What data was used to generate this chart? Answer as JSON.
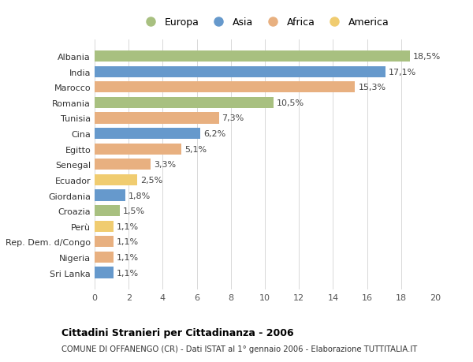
{
  "countries": [
    "Albania",
    "India",
    "Marocco",
    "Romania",
    "Tunisia",
    "Cina",
    "Egitto",
    "Senegal",
    "Ecuador",
    "Giordania",
    "Croazia",
    "Perù",
    "Rep. Dem. d/Congo",
    "Nigeria",
    "Sri Lanka"
  ],
  "values": [
    18.5,
    17.1,
    15.3,
    10.5,
    7.3,
    6.2,
    5.1,
    3.3,
    2.5,
    1.8,
    1.5,
    1.1,
    1.1,
    1.1,
    1.1
  ],
  "continents": [
    "Europa",
    "Asia",
    "Africa",
    "Europa",
    "Africa",
    "Asia",
    "Africa",
    "Africa",
    "America",
    "Asia",
    "Europa",
    "America",
    "Africa",
    "Africa",
    "Asia"
  ],
  "continent_colors": {
    "Europa": "#a8c080",
    "Asia": "#6699cc",
    "Africa": "#e8b080",
    "America": "#f0cc70"
  },
  "legend_order": [
    "Europa",
    "Asia",
    "Africa",
    "America"
  ],
  "xlim": [
    0,
    20
  ],
  "xticks": [
    0,
    2,
    4,
    6,
    8,
    10,
    12,
    14,
    16,
    18,
    20
  ],
  "title": "Cittadini Stranieri per Cittadinanza - 2006",
  "subtitle": "COMUNE DI OFFANENGO (CR) - Dati ISTAT al 1° gennaio 2006 - Elaborazione TUTTITALIA.IT",
  "bg_color": "#ffffff",
  "grid_color": "#d8d8d8",
  "bar_height": 0.72,
  "label_fontsize": 8,
  "tick_fontsize": 8,
  "legend_fontsize": 9
}
